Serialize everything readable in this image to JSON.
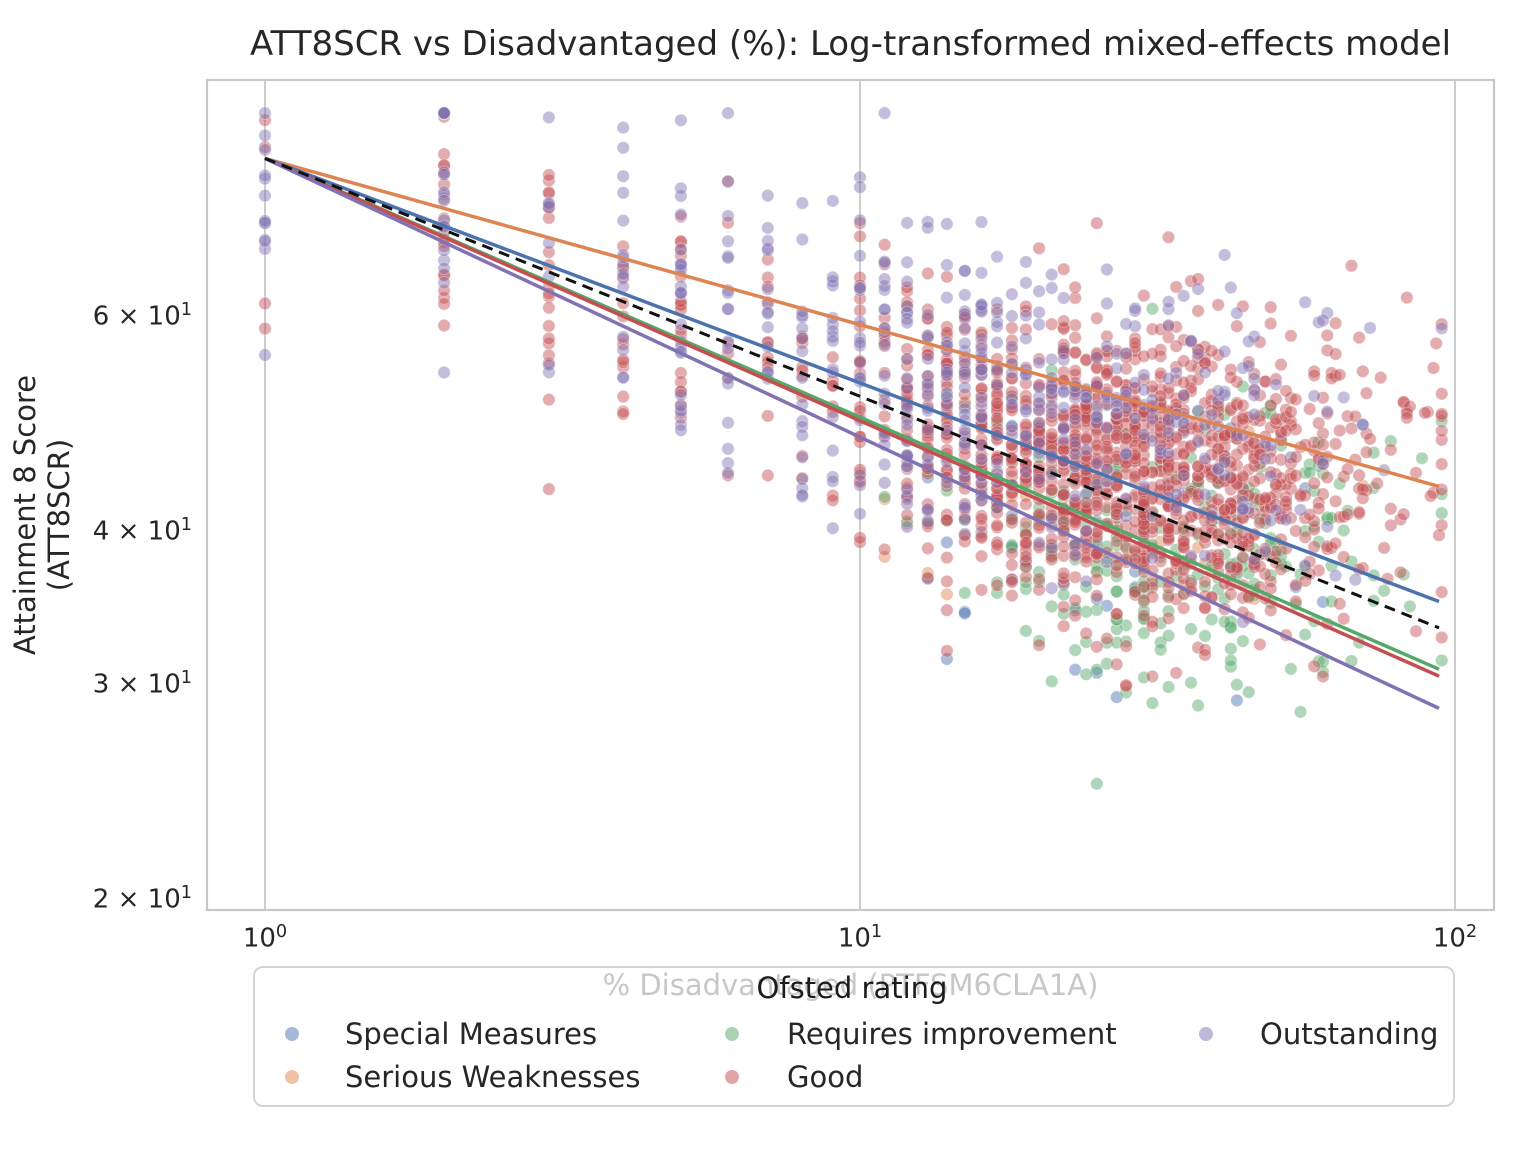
{
  "title": "ATT8SCR vs Disadvantaged (%): Log-transformed mixed-effects model",
  "axes": {
    "y_label": "Attainment 8 Score (ATT8SCR)",
    "x_label": "% Disadvantaged (PTFSM6CLA1A)",
    "y_ticks": [
      {
        "mantissa": "6 × 10",
        "exp": "1",
        "value": 60
      },
      {
        "mantissa": "4 × 10",
        "exp": "1",
        "value": 40
      },
      {
        "mantissa": "3 × 10",
        "exp": "1",
        "value": 30
      },
      {
        "mantissa": "2 × 10",
        "exp": "1",
        "value": 20
      }
    ],
    "x_ticks": [
      {
        "base": "10",
        "exp": "0",
        "value": 1
      },
      {
        "base": "10",
        "exp": "1",
        "value": 10
      },
      {
        "base": "10",
        "exp": "2",
        "value": 100
      }
    ]
  },
  "legend": {
    "title": "Ofsted rating",
    "entries": [
      {
        "label": "Special Measures",
        "color_key": "special_measures"
      },
      {
        "label": "Serious Weaknesses",
        "color_key": "serious_weaknesses"
      },
      {
        "label": "Requires improvement",
        "color_key": "requires_improvement"
      },
      {
        "label": "Good",
        "color_key": "good"
      },
      {
        "label": "Outstanding",
        "color_key": "outstanding"
      }
    ]
  },
  "palette": {
    "special_measures": "#4c72b0",
    "serious_weaknesses": "#dd8452",
    "requires_improvement": "#55a868",
    "good": "#c44e52",
    "outstanding": "#8172b3",
    "overall": "#111111",
    "grid": "#cccccc",
    "spine": "#c8c8c8",
    "text": "#262626",
    "muted_label": "#c7c7c7"
  },
  "chart_data": {
    "type": "scatter",
    "title": "ATT8SCR vs Disadvantaged (%): Log-transformed mixed-effects model",
    "xlabel": "% Disadvantaged (PTFSM6CLA1A)",
    "ylabel": "Attainment 8 Score (ATT8SCR)",
    "x_axis": {
      "scale": "log",
      "domain": [
        0.8,
        116
      ],
      "tick_values": [
        1,
        10,
        100
      ],
      "grid": true
    },
    "y_axis": {
      "scale": "log",
      "domain": [
        19.6,
        93.8
      ],
      "tick_values": [
        20,
        30,
        40,
        60
      ],
      "grid": false
    },
    "legend_position": "lower center",
    "trend_lines": [
      {
        "id": "serious_weaknesses",
        "color_key": "serious_weaknesses",
        "dashed": false,
        "x_start": 1,
        "y_at_x1": 80.9,
        "x_end": 94,
        "y_at_x94": 43.6
      },
      {
        "id": "special_measures",
        "color_key": "special_measures",
        "dashed": false,
        "x_start": 1,
        "y_at_x1": 80.9,
        "x_end": 94,
        "y_at_x94": 35.1
      },
      {
        "id": "requires_improvement",
        "color_key": "requires_improvement",
        "dashed": false,
        "x_start": 1,
        "y_at_x1": 80.9,
        "x_end": 94,
        "y_at_x94": 30.9
      },
      {
        "id": "good",
        "color_key": "good",
        "dashed": false,
        "x_start": 1,
        "y_at_x1": 80.9,
        "x_end": 94,
        "y_at_x94": 30.5
      },
      {
        "id": "outstanding",
        "color_key": "outstanding",
        "dashed": false,
        "x_start": 1,
        "y_at_x1": 80.9,
        "x_end": 94,
        "y_at_x94": 28.7
      },
      {
        "id": "overall_fixed_effect",
        "color_key": "overall",
        "dashed": true,
        "x_start": 1,
        "y_at_x1": 80.9,
        "x_end": 94,
        "y_at_x94": 33.4
      }
    ],
    "scatter": {
      "point_radius": 6.2,
      "alpha": 0.47,
      "x_values_are_integer_percent": true,
      "cloud_quad_log10": [
        1.964,
        -0.39,
        0.116
      ],
      "ly_clamp": [
        1.315,
        1.945
      ],
      "series": [
        {
          "name": "Special Measures",
          "color_key": "special_measures",
          "n": 48,
          "seed": 101,
          "x_mix": [
            {
              "w": 1.0,
              "mu": 1.46,
              "sigma": 0.22
            }
          ],
          "y_offset": -0.04,
          "y_sigma": 0.065
        },
        {
          "name": "Serious Weaknesses",
          "color_key": "serious_weaknesses",
          "n": 26,
          "seed": 202,
          "x_mix": [
            {
              "w": 1.0,
              "mu": 1.48,
              "sigma": 0.2
            }
          ],
          "y_offset": -0.015,
          "y_sigma": 0.06
        },
        {
          "name": "Requires improvement",
          "color_key": "requires_improvement",
          "n": 290,
          "seed": 303,
          "x_mix": [
            {
              "w": 1.0,
              "mu": 1.53,
              "sigma": 0.18
            }
          ],
          "y_offset": -0.055,
          "y_sigma": 0.058
        },
        {
          "name": "Good",
          "color_key": "good",
          "n": 1500,
          "seed": 404,
          "x_mix": [
            {
              "w": 0.93,
              "mu": 1.44,
              "sigma": 0.21
            },
            {
              "w": 0.07,
              "mu": 0.62,
              "sigma": 0.28
            }
          ],
          "y_offset": 0.012,
          "y_sigma": 0.06
        },
        {
          "name": "Outstanding",
          "color_key": "outstanding",
          "n": 520,
          "seed": 505,
          "x_mix": [
            {
              "w": 0.82,
              "mu": 1.28,
              "sigma": 0.27
            },
            {
              "w": 0.18,
              "mu": 0.55,
              "sigma": 0.28
            }
          ],
          "y_offset": 0.05,
          "y_sigma": 0.065
        }
      ]
    }
  }
}
